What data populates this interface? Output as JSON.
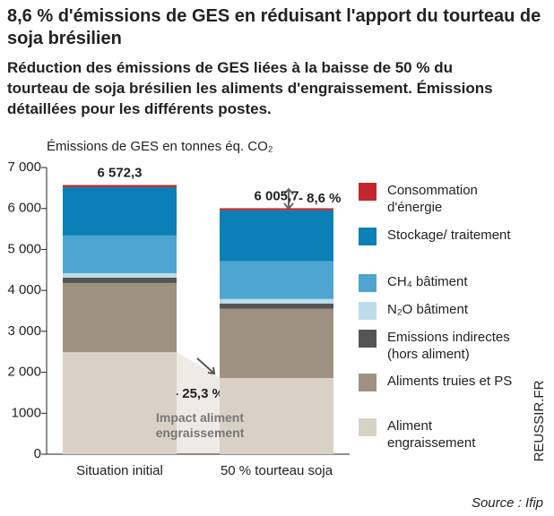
{
  "chart_data": {
    "type": "stacked_bar",
    "title": "8,6 % d'émissions de GES en réduisant l'apport du tourteau de soja brésilien",
    "subtitle": "Réduction des émissions de GES liées à la baisse de 50 % du tourteau de soja brésilien les aliments d'engraissement. Émissions détaillées pour les différents postes.",
    "y_label": "Émissions de GES en tonnes éq. CO₂",
    "categories": [
      "Situation initial",
      "50 % tourteau soja"
    ],
    "series": [
      {
        "name": "Aliment engraissement",
        "color": "#dad1c6",
        "values": [
          2490,
          1860
        ]
      },
      {
        "name": "Aliments truies et PS",
        "color": "#9e9181",
        "values": [
          1690,
          1690
        ]
      },
      {
        "name": "Emissions indirectes (hors aliment)",
        "color": "#555555",
        "values": [
          130,
          130
        ]
      },
      {
        "name": "N₂O bâtiment",
        "color": "#bcdcea",
        "values": [
          110,
          110
        ]
      },
      {
        "name": "CH₄ bâtiment",
        "color": "#4ea5d2",
        "values": [
          920,
          920
        ]
      },
      {
        "name": "Stockage/ traitement",
        "color": "#0a80b6",
        "values": [
          1180,
          1245
        ]
      },
      {
        "name": "Consommation d'énergie",
        "color": "#c1272d",
        "values": [
          52.3,
          50.7
        ]
      }
    ],
    "totals": {
      "values": [
        6572.3,
        6005.7
      ],
      "value_labels": [
        "6 572,3",
        "6 005,7"
      ]
    },
    "annotations": [
      "- 8,6 %",
      "- 25,3 %",
      "Impact aliment engraissement"
    ],
    "ylim": [
      0,
      7000
    ],
    "yticks": [
      0,
      {
        "value": 1000,
        "label": "1000"
      },
      {
        "value": 2000,
        "label": "2 000"
      },
      {
        "value": 3000,
        "label": "3 000"
      },
      {
        "value": 4000,
        "label": "4 000"
      },
      {
        "value": 5000,
        "label": "5 000"
      },
      {
        "value": 6000,
        "label": "6 000"
      },
      {
        "value": 7000,
        "label": "7 000"
      }
    ],
    "source": "Source : Ifip",
    "credit": "REUSSIR.FR"
  }
}
